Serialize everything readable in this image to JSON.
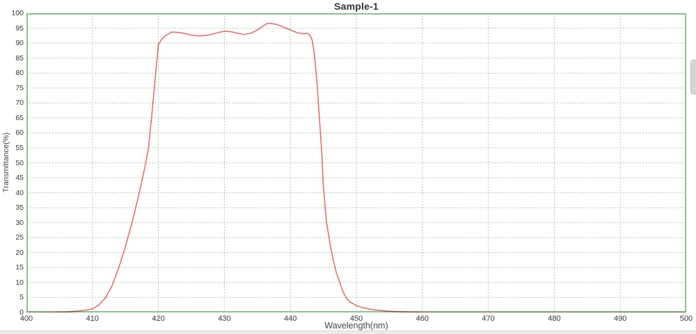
{
  "page": {
    "background": "#ffffff",
    "bottom_edge_color": "#eaebec"
  },
  "chart_data": {
    "type": "line",
    "title": "Sample-1",
    "xlabel": "Wavelength(nm)",
    "ylabel": "Transmittance(%)",
    "xlim": [
      400,
      500
    ],
    "ylim": [
      0,
      100
    ],
    "x_ticks": [
      400,
      410,
      420,
      430,
      440,
      450,
      460,
      470,
      480,
      490,
      500
    ],
    "y_ticks": [
      0,
      5,
      10,
      15,
      20,
      25,
      30,
      35,
      40,
      45,
      50,
      55,
      60,
      65,
      70,
      75,
      80,
      85,
      90,
      95,
      100
    ],
    "grid": true,
    "grid_style": "dotted",
    "grid_color": "#8ab88a",
    "border_color": "#8fbe8f",
    "legend": "none",
    "series": [
      {
        "name": "Sample-1 transmittance",
        "color": "#e2716b",
        "points": [
          [
            400,
            0
          ],
          [
            401,
            0
          ],
          [
            402,
            0
          ],
          [
            403,
            0
          ],
          [
            404,
            0.05
          ],
          [
            405,
            0.1
          ],
          [
            406,
            0.15
          ],
          [
            407,
            0.3
          ],
          [
            408,
            0.5
          ],
          [
            409,
            0.8
          ],
          [
            410,
            1.2
          ],
          [
            411,
            2.6
          ],
          [
            412,
            5
          ],
          [
            413,
            9
          ],
          [
            414,
            15
          ],
          [
            415,
            22
          ],
          [
            416,
            30
          ],
          [
            417,
            39
          ],
          [
            418,
            49
          ],
          [
            418.5,
            55
          ],
          [
            419,
            66
          ],
          [
            419.5,
            78
          ],
          [
            420,
            89.5
          ],
          [
            420.5,
            91.3
          ],
          [
            421,
            92.4
          ],
          [
            422,
            93.7
          ],
          [
            423,
            93.6
          ],
          [
            424,
            93.2
          ],
          [
            425,
            92.7
          ],
          [
            426,
            92.4
          ],
          [
            427,
            92.5
          ],
          [
            428,
            92.9
          ],
          [
            429,
            93.5
          ],
          [
            430,
            94.0
          ],
          [
            431,
            93.8
          ],
          [
            432,
            93.3
          ],
          [
            433,
            92.9
          ],
          [
            434,
            93.3
          ],
          [
            435,
            94.4
          ],
          [
            436,
            95.9
          ],
          [
            436.5,
            96.6
          ],
          [
            437,
            96.6
          ],
          [
            438,
            96.2
          ],
          [
            439,
            95.3
          ],
          [
            440,
            94.4
          ],
          [
            441,
            93.5
          ],
          [
            442,
            93.1
          ],
          [
            442.6,
            93.3
          ],
          [
            443,
            92.6
          ],
          [
            443.3,
            91
          ],
          [
            443.6,
            87
          ],
          [
            444,
            78
          ],
          [
            444.4,
            65
          ],
          [
            444.8,
            52
          ],
          [
            445,
            42
          ],
          [
            445.5,
            30
          ],
          [
            446,
            23
          ],
          [
            446.5,
            17.5
          ],
          [
            447,
            13
          ],
          [
            447.5,
            10
          ],
          [
            448,
            6.8
          ],
          [
            448.5,
            4.8
          ],
          [
            449,
            3.6
          ],
          [
            450,
            2.3
          ],
          [
            451,
            1.6
          ],
          [
            452,
            1.1
          ],
          [
            453,
            0.8
          ],
          [
            454,
            0.6
          ],
          [
            455,
            0.4
          ],
          [
            456,
            0.3
          ],
          [
            457,
            0.2
          ],
          [
            458,
            0.15
          ],
          [
            460,
            0.05
          ],
          [
            462,
            0
          ],
          [
            465,
            0
          ],
          [
            470,
            0
          ],
          [
            475,
            0
          ],
          [
            480,
            0
          ],
          [
            485,
            0
          ],
          [
            490,
            0
          ],
          [
            495,
            0
          ],
          [
            500,
            0
          ]
        ]
      }
    ]
  }
}
